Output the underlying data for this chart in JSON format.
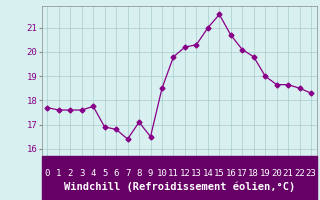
{
  "x": [
    0,
    1,
    2,
    3,
    4,
    5,
    6,
    7,
    8,
    9,
    10,
    11,
    12,
    13,
    14,
    15,
    16,
    17,
    18,
    19,
    20,
    21,
    22,
    23
  ],
  "y": [
    17.7,
    17.6,
    17.6,
    17.6,
    17.75,
    16.9,
    16.8,
    16.4,
    17.1,
    16.5,
    18.5,
    19.8,
    20.2,
    20.3,
    21.0,
    21.55,
    20.7,
    20.1,
    19.8,
    19.0,
    18.65,
    18.65,
    18.5,
    18.3
  ],
  "line_color": "#880088",
  "marker": "D",
  "markersize": 2.5,
  "linewidth": 0.9,
  "xlabel": "Windchill (Refroidissement éolien,°C)",
  "ylabel_ticks": [
    16,
    17,
    18,
    19,
    20,
    21
  ],
  "xlim": [
    -0.5,
    23.5
  ],
  "ylim": [
    15.7,
    21.9
  ],
  "bg_color": "#d8f0f0",
  "grid_color": "#aacccc",
  "tick_fontsize": 6.5,
  "xlabel_fontsize": 7.5,
  "ytick_color": "#880088",
  "xtick_bar_color": "#660066",
  "xtick_label_color": "#ffffff"
}
